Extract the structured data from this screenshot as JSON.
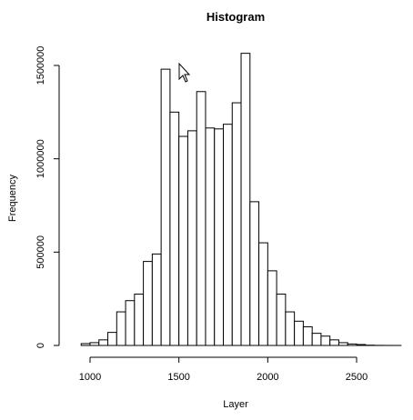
{
  "chart_data": {
    "type": "bar",
    "title": "Histogram",
    "xlabel": "Layer",
    "ylabel": "Frequency",
    "bin_width": 50,
    "bins": [
      {
        "x0": 950,
        "x1": 1000,
        "count": 10000
      },
      {
        "x0": 1000,
        "x1": 1050,
        "count": 15000
      },
      {
        "x0": 1050,
        "x1": 1100,
        "count": 30000
      },
      {
        "x0": 1100,
        "x1": 1150,
        "count": 70000
      },
      {
        "x0": 1150,
        "x1": 1200,
        "count": 180000
      },
      {
        "x0": 1200,
        "x1": 1250,
        "count": 240000
      },
      {
        "x0": 1250,
        "x1": 1300,
        "count": 275000
      },
      {
        "x0": 1300,
        "x1": 1350,
        "count": 450000
      },
      {
        "x0": 1350,
        "x1": 1400,
        "count": 490000
      },
      {
        "x0": 1400,
        "x1": 1450,
        "count": 1480000
      },
      {
        "x0": 1450,
        "x1": 1500,
        "count": 1250000
      },
      {
        "x0": 1500,
        "x1": 1550,
        "count": 1120000
      },
      {
        "x0": 1550,
        "x1": 1600,
        "count": 1150000
      },
      {
        "x0": 1600,
        "x1": 1650,
        "count": 1360000
      },
      {
        "x0": 1650,
        "x1": 1700,
        "count": 1165000
      },
      {
        "x0": 1700,
        "x1": 1750,
        "count": 1160000
      },
      {
        "x0": 1750,
        "x1": 1800,
        "count": 1185000
      },
      {
        "x0": 1800,
        "x1": 1850,
        "count": 1300000
      },
      {
        "x0": 1850,
        "x1": 1900,
        "count": 1565000
      },
      {
        "x0": 1900,
        "x1": 1950,
        "count": 770000
      },
      {
        "x0": 1950,
        "x1": 2000,
        "count": 550000
      },
      {
        "x0": 2000,
        "x1": 2050,
        "count": 400000
      },
      {
        "x0": 2050,
        "x1": 2100,
        "count": 275000
      },
      {
        "x0": 2100,
        "x1": 2150,
        "count": 180000
      },
      {
        "x0": 2150,
        "x1": 2200,
        "count": 130000
      },
      {
        "x0": 2200,
        "x1": 2250,
        "count": 100000
      },
      {
        "x0": 2250,
        "x1": 2300,
        "count": 65000
      },
      {
        "x0": 2300,
        "x1": 2350,
        "count": 50000
      },
      {
        "x0": 2350,
        "x1": 2400,
        "count": 30000
      },
      {
        "x0": 2400,
        "x1": 2450,
        "count": 15000
      },
      {
        "x0": 2450,
        "x1": 2500,
        "count": 8000
      },
      {
        "x0": 2500,
        "x1": 2550,
        "count": 5000
      },
      {
        "x0": 2550,
        "x1": 2600,
        "count": 1500
      },
      {
        "x0": 2600,
        "x1": 2650,
        "count": 500
      },
      {
        "x0": 2650,
        "x1": 2700,
        "count": 200
      },
      {
        "x0": 2700,
        "x1": 2750,
        "count": 100
      }
    ],
    "x_ticks": [
      1000,
      1500,
      2000,
      2500
    ],
    "x_tick_labels": [
      "1000",
      "1500",
      "2000",
      "2500"
    ],
    "y_ticks": [
      0,
      500000,
      1000000,
      1500000
    ],
    "y_tick_labels": [
      "0",
      "500000",
      "1000000",
      "1500000"
    ],
    "xlim": [
      950,
      2750
    ],
    "ylim": [
      0,
      1565000
    ],
    "grid": false,
    "legend": "none"
  }
}
